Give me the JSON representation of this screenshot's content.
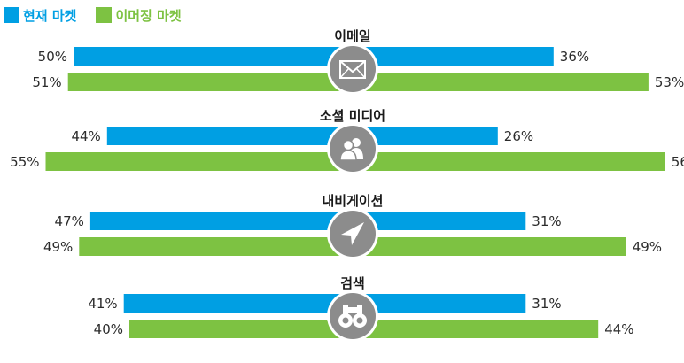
{
  "colors": {
    "current": "#009fe3",
    "emerging": "#7dc242",
    "icon_bg": "#8c8c8c",
    "icon_border": "#ffffff",
    "icon_fg": "#ffffff"
  },
  "legend": {
    "current_label": "현재 마켓",
    "emerging_label": "이머징 마켓"
  },
  "chart_data": {
    "type": "bar",
    "orientation": "horizontal-butterfly",
    "series": [
      {
        "name": "현재 마켓",
        "color": "#009fe3"
      },
      {
        "name": "이머징 마켓",
        "color": "#7dc242"
      }
    ],
    "categories": [
      {
        "name": "이메일",
        "icon": "envelope-icon",
        "current": {
          "left": 50,
          "right": 36
        },
        "emerging": {
          "left": 51,
          "right": 53
        }
      },
      {
        "name": "소셜 미디어",
        "icon": "users-icon",
        "current": {
          "left": 44,
          "right": 26
        },
        "emerging": {
          "left": 55,
          "right": 56
        }
      },
      {
        "name": "내비게이션",
        "icon": "navigation-arrow-icon",
        "current": {
          "left": 47,
          "right": 31
        },
        "emerging": {
          "left": 49,
          "right": 49
        }
      },
      {
        "name": "검색",
        "icon": "binoculars-icon",
        "current": {
          "left": 41,
          "right": 31
        },
        "emerging": {
          "left": 40,
          "right": 44
        }
      }
    ],
    "value_format": "{v}%"
  }
}
